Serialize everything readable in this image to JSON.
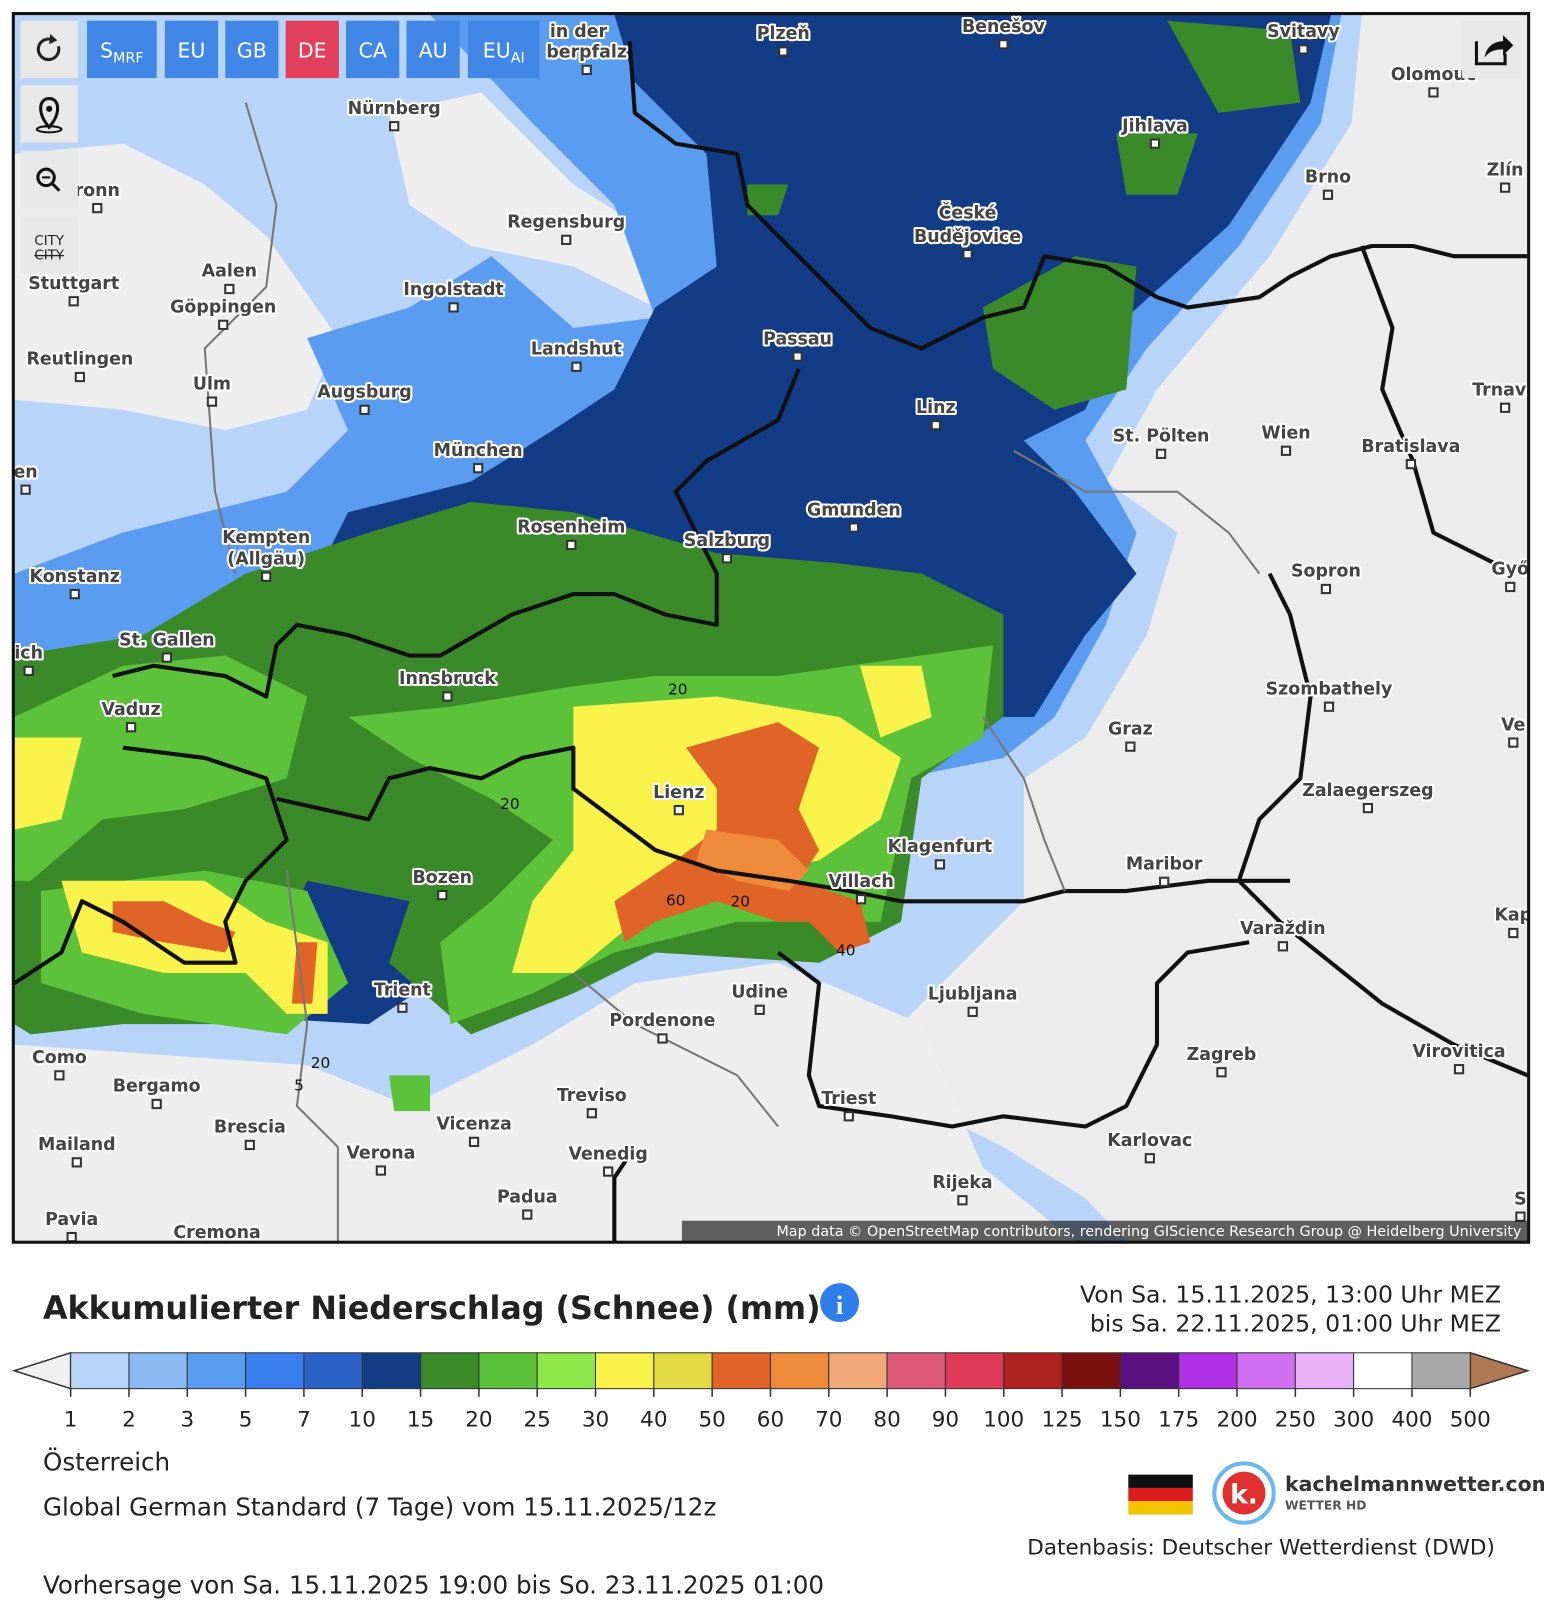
{
  "toolbar": {
    "models": [
      {
        "label": "S",
        "sub": "MRF"
      },
      {
        "label": "EU"
      },
      {
        "label": "GB"
      },
      {
        "label": "DE"
      },
      {
        "label": "CA"
      },
      {
        "label": "AU"
      },
      {
        "label": "EU",
        "sub": "AI"
      }
    ],
    "city_toggle": [
      "CITY",
      "CITY"
    ]
  },
  "map": {
    "cities": [
      "Nürnberg",
      "Plzeň",
      "Benešov",
      "Svitavy",
      "Olomouc",
      "in der",
      "berpfalz",
      "Jihlava",
      "Brno",
      "Zlín",
      "ronn",
      "Regensburg",
      "České",
      "Budějovice",
      "Aalen",
      "Stuttgart",
      "Göppingen",
      "Ingolstadt",
      "Landshut",
      "Passau",
      "Reutlingen",
      "Ulm",
      "Augsburg",
      "Linz",
      "Trnava",
      "en",
      "München",
      "St. Pölten",
      "Wien",
      "Bratislava",
      "Kempten",
      "(Allgäu)",
      "Rosenheim",
      "Salzburg",
      "Gmunden",
      "Sopron",
      "Győ",
      "Konstanz",
      "ich",
      "St. Gallen",
      "Innsbruck",
      "Vaduz",
      "Szombathely",
      "Graz",
      "Ve",
      "Lienz",
      "Zalaegerszeg",
      "Klagenfurt",
      "Maribor",
      "Bozen",
      "Villach",
      "Varaždin",
      "Kap",
      "Trient",
      "Udine",
      "Ljubljana",
      "Pordenone",
      "Zagreb",
      "Virovitica",
      "Como",
      "Bergamo",
      "Treviso",
      "Triest",
      "Brescia",
      "Vicenza",
      "Karlovac",
      "Mailand",
      "Verona",
      "Venedig",
      "Rijeka",
      "Padua",
      "Pavia",
      "Cremona",
      "S"
    ],
    "contour_labels": [
      "20",
      "20",
      "60",
      "20",
      "40",
      "20",
      "5"
    ],
    "attribution": "Map data © OpenStreetMap contributors, rendering GIScience Research Group @ Heidelberg University"
  },
  "header": {
    "title": "Akkumulierter Niederschlag (Schnee) (mm)",
    "valid_from": "Von Sa. 15.11.2025, 13:00 Uhr MEZ",
    "valid_to": "bis Sa. 22.11.2025, 01:00 Uhr MEZ"
  },
  "legend": {
    "ticks": [
      1,
      2,
      3,
      5,
      7,
      10,
      15,
      20,
      25,
      30,
      40,
      50,
      60,
      70,
      80,
      90,
      100,
      125,
      150,
      175,
      200,
      250,
      300,
      400,
      500
    ],
    "colors": [
      "#b8d4f8",
      "#8ab9f2",
      "#5a9cef",
      "#3a7ff0",
      "#2a62c8",
      "#123c85",
      "#3a8a2a",
      "#5cc23a",
      "#8ee84a",
      "#f9f24a",
      "#e3db44",
      "#e06428",
      "#ee8a3a",
      "#f0a878",
      "#e05a7a",
      "#e03a58",
      "#b02020",
      "#7a1010",
      "#5a1080",
      "#b030e8",
      "#d070f0",
      "#e8b0f8",
      "#ffffff",
      "#a8a8a8"
    ],
    "under_color": "#f0f0f0",
    "over_color": "#b07850"
  },
  "footer": {
    "region": "Österreich",
    "model_run": "Global German Standard (7 Tage) vom 15.11.2025/12z",
    "forecast": "Vorhersage von Sa. 15.11.2025 19:00 bis So. 23.11.2025 01:00",
    "source": "Datenbasis: Deutscher Wetterdienst (DWD)",
    "logo_letter": "k.",
    "logo_name": "kachelmannwetter.com",
    "logo_sub": "WETTER HD"
  }
}
